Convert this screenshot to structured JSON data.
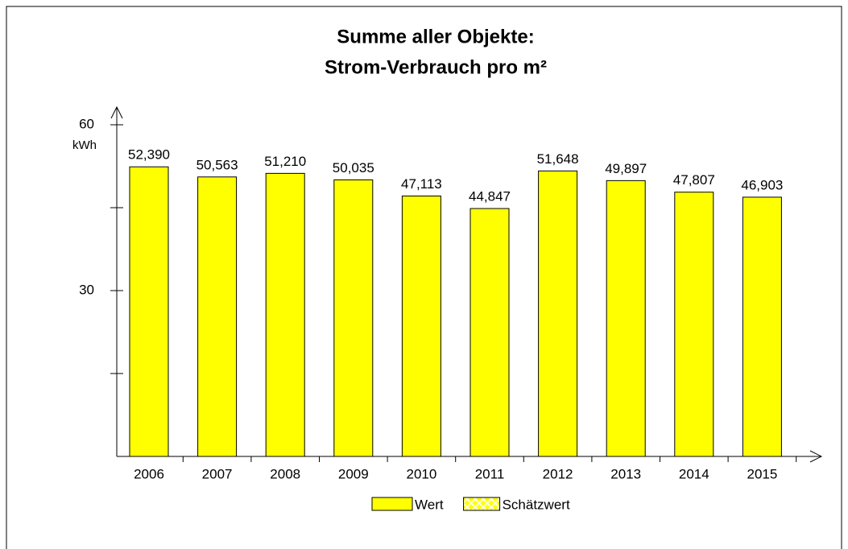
{
  "chart_data": {
    "type": "bar",
    "title": [
      "Summe aller Objekte:",
      "Strom-Verbrauch pro m²"
    ],
    "y_label": "kWh",
    "categories": [
      "2006",
      "2007",
      "2008",
      "2009",
      "2010",
      "2011",
      "2012",
      "2013",
      "2014",
      "2015"
    ],
    "series": [
      {
        "name": "Wert",
        "color": "#ffff00",
        "values": [
          52.39,
          50.563,
          51.21,
          50.035,
          47.113,
          44.847,
          51.648,
          49.897,
          47.807,
          46.903
        ],
        "value_labels": [
          "52,390",
          "50,563",
          "51,210",
          "50,035",
          "47,113",
          "44,847",
          "51,648",
          "49,897",
          "47,807",
          "46,903"
        ]
      },
      {
        "name": "Schätzwert",
        "color": "#ffffc0",
        "pattern": "crosshatch",
        "values": [
          null,
          null,
          null,
          null,
          null,
          null,
          null,
          null,
          null,
          null
        ]
      }
    ],
    "ylim": [
      0,
      60
    ],
    "yticks": [
      30,
      60
    ],
    "minor_yticks": [
      15,
      45
    ],
    "grid": false
  }
}
